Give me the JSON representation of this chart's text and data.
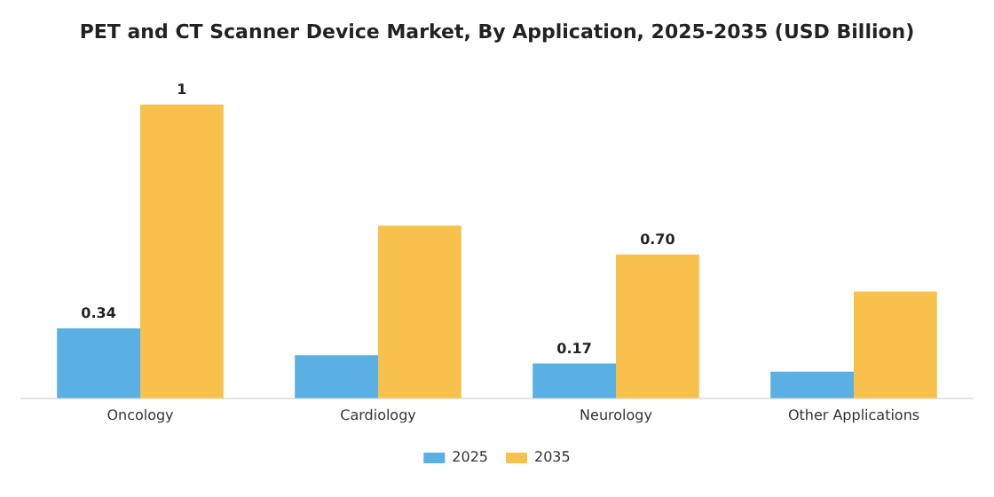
{
  "chart_data": {
    "type": "bar",
    "title": "PET and CT Scanner Device Market, By Application, 2025-2035 (USD Billion)",
    "categories": [
      "Oncology",
      "Cardiology",
      "Neurology",
      "Other Applications"
    ],
    "series": [
      {
        "name": "2025",
        "color": "#5aafe3",
        "values": [
          0.34,
          0.21,
          0.17,
          0.13
        ],
        "value_labels": [
          "0.34",
          null,
          "0.17",
          null
        ]
      },
      {
        "name": "2035",
        "color": "#f7c14b",
        "values": [
          1.43,
          0.84,
          0.7,
          0.52
        ],
        "value_labels": [
          "1",
          null,
          "0.70",
          null
        ]
      }
    ],
    "legend": "bottom",
    "grid": false
  }
}
